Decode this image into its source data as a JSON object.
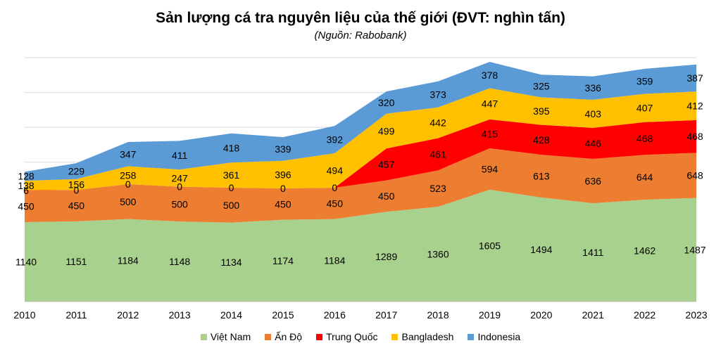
{
  "chart_data": {
    "type": "area",
    "stacked": true,
    "title": "Sản lượng cá tra nguyên liệu của thế giới (ĐVT: nghìn tấn)",
    "subtitle": "(Nguồn: Rabobank)",
    "categories": [
      "2010",
      "2011",
      "2012",
      "2013",
      "2014",
      "2015",
      "2016",
      "2017",
      "2018",
      "2019",
      "2020",
      "2021",
      "2022",
      "2023"
    ],
    "ylim": [
      0,
      3500
    ],
    "grid": true,
    "legend_position": "bottom",
    "series": [
      {
        "name": "Việt Nam",
        "color": "#A9D18E",
        "values": [
          1140,
          1151,
          1184,
          1148,
          1134,
          1174,
          1184,
          1289,
          1360,
          1605,
          1494,
          1411,
          1462,
          1487
        ]
      },
      {
        "name": "Ấn Độ",
        "color": "#ED7D31",
        "values": [
          450,
          450,
          500,
          500,
          500,
          450,
          450,
          450,
          523,
          594,
          613,
          636,
          644,
          648
        ]
      },
      {
        "name": "Trung Quốc",
        "color": "#FF0000",
        "values": [
          6,
          0,
          0,
          0,
          0,
          0,
          0,
          457,
          461,
          415,
          428,
          446,
          468,
          468
        ]
      },
      {
        "name": "Bangladesh",
        "color": "#FFC000",
        "values": [
          138,
          156,
          258,
          247,
          361,
          396,
          494,
          499,
          442,
          447,
          395,
          403,
          407,
          412
        ]
      },
      {
        "name": "Indonesia",
        "color": "#5B9BD5",
        "values": [
          128,
          229,
          347,
          411,
          418,
          339,
          392,
          320,
          373,
          378,
          325,
          336,
          359,
          387
        ]
      }
    ]
  }
}
